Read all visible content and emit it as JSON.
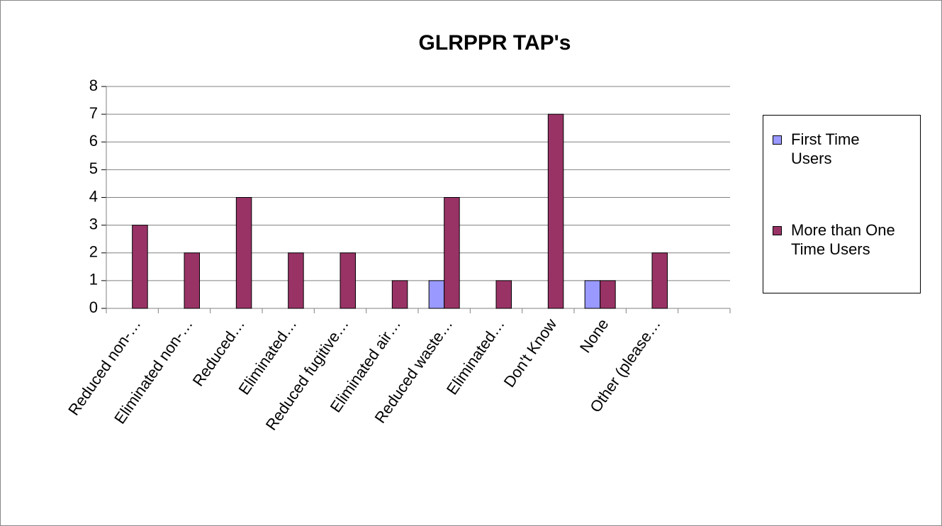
{
  "chart_data": {
    "type": "bar",
    "title": "GLRPPR TAP's",
    "categories": [
      "Reduced non-…",
      "Eliminated non-…",
      "Reduced…",
      "Eliminated…",
      "Reduced fugitive…",
      "Eliminated air…",
      "Reduced waste…",
      "Eliminated…",
      "Don't Know",
      "None",
      "Other (please…",
      null
    ],
    "series": [
      {
        "name": "First Time Users",
        "color": "#9999ff",
        "values": [
          0,
          0,
          0,
          0,
          0,
          0,
          1,
          0,
          0,
          1,
          0,
          null
        ]
      },
      {
        "name": "More than One Time Users",
        "color": "#993366",
        "values": [
          3,
          2,
          4,
          2,
          2,
          1,
          4,
          1,
          7,
          1,
          2,
          null
        ]
      }
    ],
    "ylim": [
      0,
      8
    ],
    "yticks": [
      0,
      1,
      2,
      3,
      4,
      5,
      6,
      7,
      8
    ],
    "grid": true,
    "legend": "right"
  }
}
